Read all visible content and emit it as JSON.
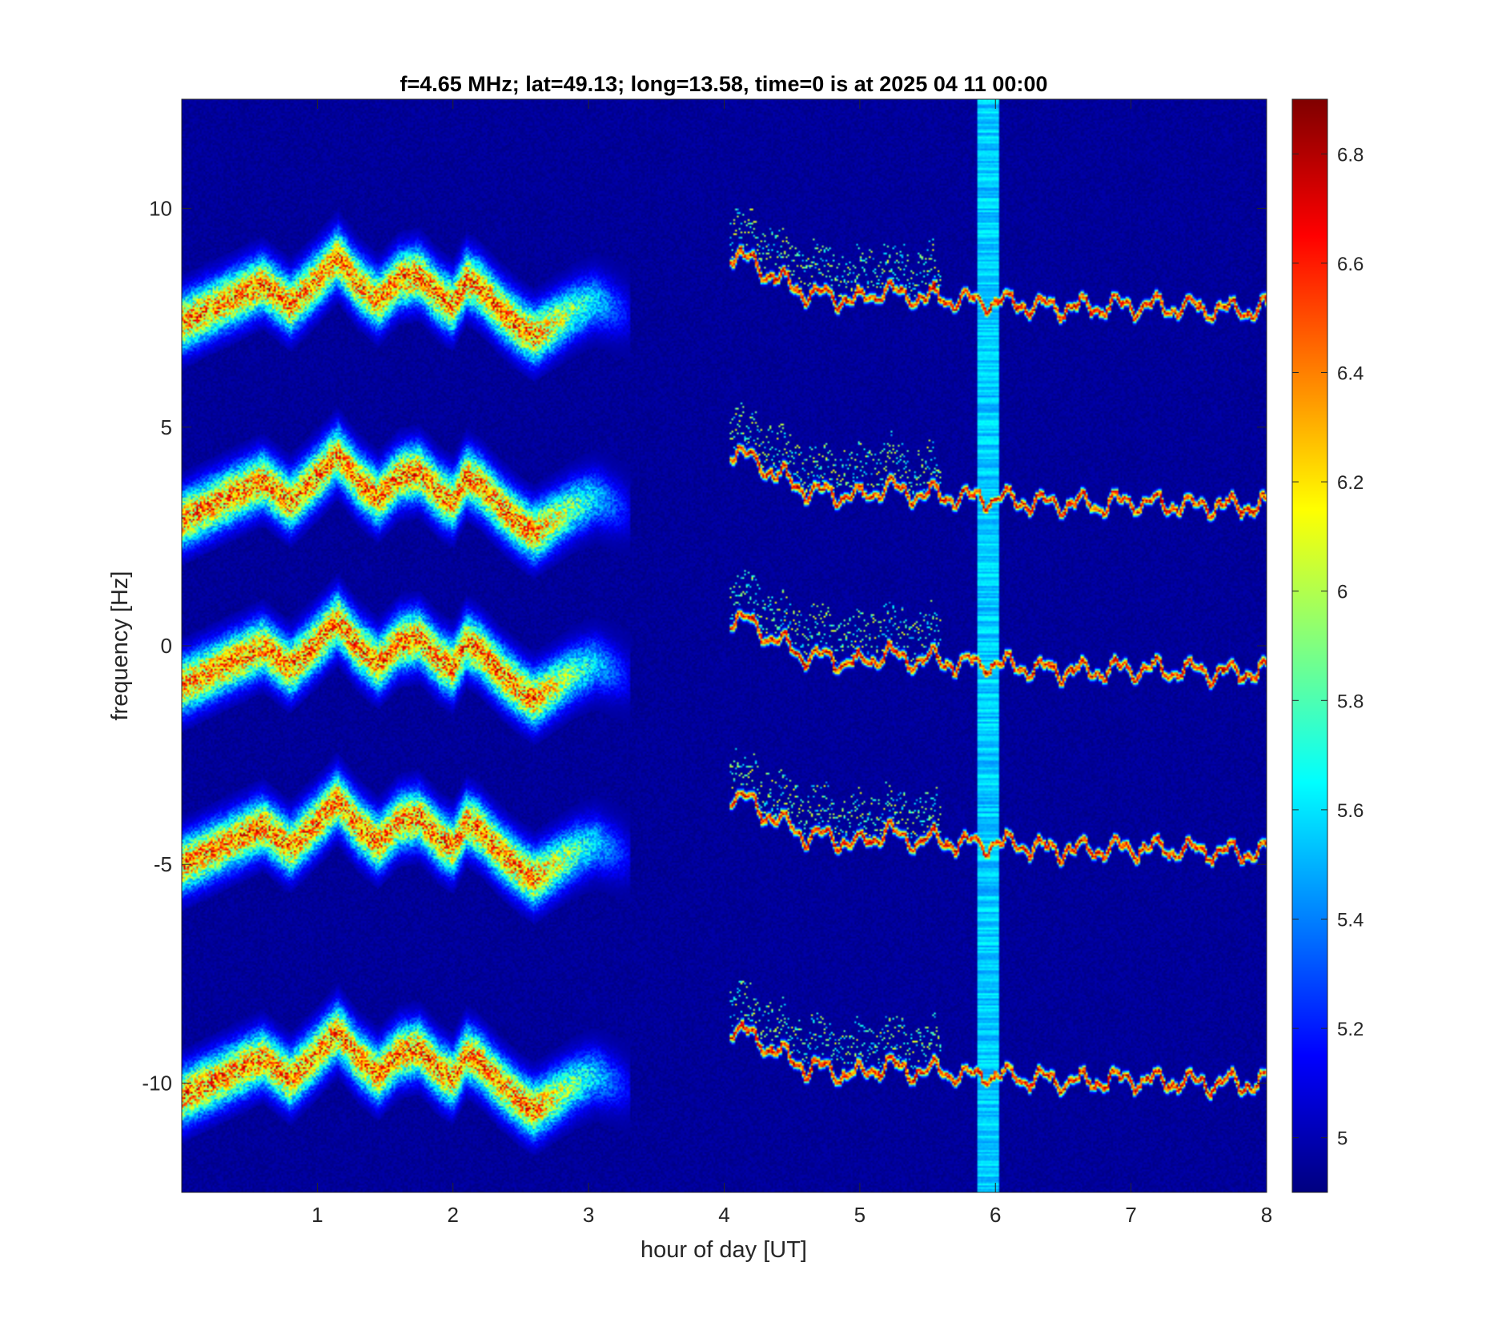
{
  "chart_data": {
    "type": "heatmap",
    "title": "f=4.65 MHz;  lat=49.13; long=13.58, time=0 is at 2025 04 11 00:00",
    "xlabel": "hour of day [UT]",
    "ylabel": "frequency [Hz]",
    "xlim": [
      0,
      8
    ],
    "ylim": [
      -12.5,
      12.5
    ],
    "x_ticks": [
      1,
      2,
      3,
      4,
      5,
      6,
      7,
      8
    ],
    "x_tick_labels": [
      "1",
      "2",
      "3",
      "4",
      "5",
      "6",
      "7",
      "8"
    ],
    "y_ticks": [
      10,
      5,
      0,
      -5,
      -10
    ],
    "y_tick_labels": [
      "10",
      "5",
      "0",
      "-5",
      "-10"
    ],
    "colorbar": {
      "colormap": "jet",
      "range": [
        4.9,
        6.9
      ],
      "ticks": [
        5,
        5.2,
        5.4,
        5.6,
        5.8,
        6,
        6.2,
        6.4,
        6.6,
        6.8
      ],
      "tick_labels": [
        "5",
        "5.2",
        "5.4",
        "5.6",
        "5.8",
        "6",
        "6.2",
        "6.4",
        "6.6",
        "6.8"
      ]
    },
    "background_level": 4.95,
    "broadband_interference": {
      "x_range": [
        5.87,
        6.02
      ],
      "level": 5.55
    },
    "traces": {
      "offsets": [
        8,
        3.5,
        -0.3,
        -4.4,
        -9.7
      ],
      "diffuse_segment": {
        "x_range": [
          0,
          3.3
        ],
        "centerline_y_rel": [
          [
            0.0,
            -0.6
          ],
          [
            0.2,
            -0.3
          ],
          [
            0.4,
            0.0
          ],
          [
            0.6,
            0.3
          ],
          [
            0.8,
            -0.2
          ],
          [
            1.0,
            0.4
          ],
          [
            1.15,
            0.9
          ],
          [
            1.3,
            0.3
          ],
          [
            1.45,
            -0.1
          ],
          [
            1.6,
            0.4
          ],
          [
            1.75,
            0.5
          ],
          [
            1.9,
            0.0
          ],
          [
            2.0,
            -0.2
          ],
          [
            2.1,
            0.4
          ],
          [
            2.2,
            0.2
          ],
          [
            2.35,
            -0.3
          ],
          [
            2.5,
            -0.7
          ],
          [
            2.6,
            -0.9
          ],
          [
            2.75,
            -0.6
          ],
          [
            2.9,
            -0.3
          ],
          [
            3.05,
            -0.1
          ],
          [
            3.3,
            -0.4
          ]
        ],
        "peak_level": 6.6
      },
      "sharp_segment": {
        "x_range": [
          4.05,
          8.0
        ],
        "centerline_y_rel": [
          [
            4.05,
            1.0
          ],
          [
            4.2,
            0.8
          ],
          [
            4.4,
            0.4
          ],
          [
            4.6,
            0.1
          ],
          [
            4.8,
            0.0
          ],
          [
            5.0,
            -0.1
          ],
          [
            5.2,
            0.2
          ],
          [
            5.3,
            0.0
          ],
          [
            5.5,
            0.0
          ],
          [
            5.8,
            -0.1
          ],
          [
            6.0,
            -0.1
          ],
          [
            6.3,
            -0.2
          ],
          [
            6.6,
            -0.25
          ],
          [
            7.0,
            -0.2
          ],
          [
            7.4,
            -0.25
          ],
          [
            7.8,
            -0.3
          ],
          [
            8.0,
            -0.25
          ]
        ],
        "peak_level": 6.7
      }
    }
  }
}
